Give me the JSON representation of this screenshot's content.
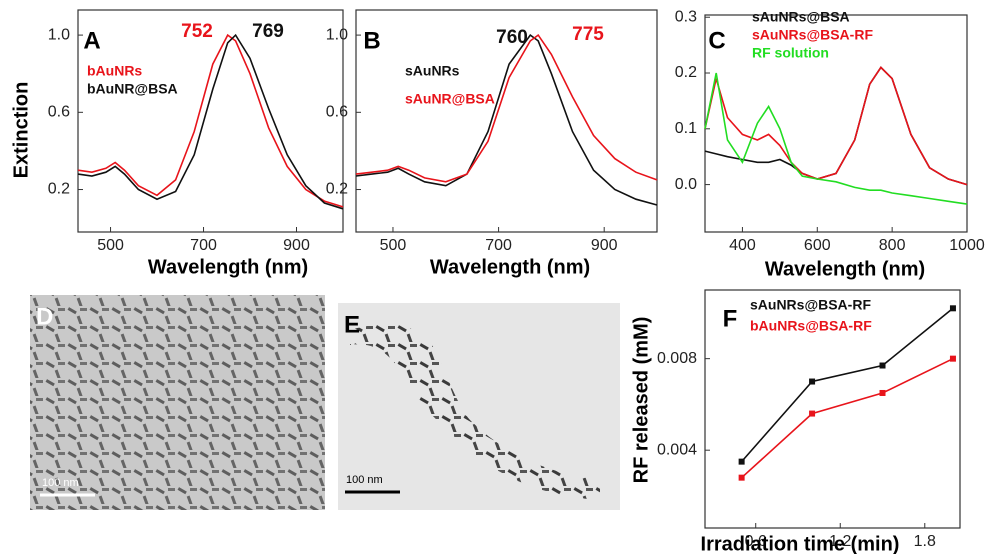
{
  "chart_data": [
    {
      "type": "line",
      "panel_label": "A",
      "y_label": "Extinction",
      "x_label": "Wavelength (nm)",
      "x": [
        430,
        460,
        490,
        510,
        530,
        560,
        600,
        640,
        680,
        720,
        752,
        769,
        800,
        840,
        880,
        920,
        960,
        1000
      ],
      "series": [
        {
          "name": "bAuNRs",
          "color": "#e8141b",
          "values": [
            0.3,
            0.29,
            0.31,
            0.34,
            0.3,
            0.22,
            0.17,
            0.25,
            0.5,
            0.85,
            1.0,
            0.97,
            0.8,
            0.52,
            0.32,
            0.2,
            0.14,
            0.11
          ]
        },
        {
          "name": "bAuNR@BSA",
          "color": "#111111",
          "values": [
            0.28,
            0.27,
            0.29,
            0.32,
            0.28,
            0.2,
            0.15,
            0.19,
            0.38,
            0.72,
            0.96,
            1.0,
            0.88,
            0.62,
            0.38,
            0.22,
            0.13,
            0.1
          ]
        }
      ],
      "annotations": [
        {
          "text": "752",
          "color": "#e8141b"
        },
        {
          "text": "769",
          "color": "#111111"
        }
      ],
      "xlim": [
        430,
        1000
      ],
      "xticks": [
        500,
        700,
        900
      ],
      "ylim": [
        -0.02,
        1.13
      ],
      "yticks": [
        0.2,
        0.6,
        {
          "value": 1,
          "label": "1.0"
        }
      ]
    },
    {
      "type": "line",
      "panel_label": "B",
      "x_label": "Wavelength (nm)",
      "x": [
        430,
        460,
        490,
        510,
        530,
        560,
        600,
        640,
        680,
        720,
        760,
        775,
        800,
        840,
        880,
        920,
        960,
        1000
      ],
      "series": [
        {
          "name": "sAuNRs",
          "color": "#111111",
          "values": [
            0.27,
            0.28,
            0.29,
            0.31,
            0.28,
            0.24,
            0.22,
            0.28,
            0.5,
            0.85,
            1.0,
            0.97,
            0.8,
            0.5,
            0.3,
            0.2,
            0.15,
            0.12
          ]
        },
        {
          "name": "sAuNR@BSA",
          "color": "#e8141b",
          "values": [
            0.28,
            0.29,
            0.3,
            0.32,
            0.3,
            0.26,
            0.24,
            0.28,
            0.45,
            0.78,
            0.97,
            1.0,
            0.9,
            0.68,
            0.48,
            0.36,
            0.29,
            0.25
          ]
        }
      ],
      "annotations": [
        {
          "text": "760",
          "color": "#111111"
        },
        {
          "text": "775",
          "color": "#e8141b"
        }
      ],
      "xlim": [
        430,
        1000
      ],
      "xticks": [
        500,
        700,
        900
      ],
      "ylim": [
        -0.02,
        1.13
      ],
      "yticks": [
        0.2,
        0.6,
        {
          "value": 1,
          "label": "1.0"
        }
      ]
    },
    {
      "type": "line",
      "panel_label": "C",
      "x_label": "Wavelength (nm)",
      "x": [
        300,
        330,
        360,
        400,
        440,
        470,
        500,
        530,
        560,
        600,
        650,
        700,
        740,
        770,
        800,
        850,
        900,
        950,
        1000
      ],
      "series": [
        {
          "name": "sAuNRs@BSA",
          "color": "#111111",
          "values": [
            0.06,
            0.055,
            0.05,
            0.045,
            0.04,
            0.04,
            0.045,
            0.035,
            0.02,
            0.01,
            0.02,
            0.08,
            0.18,
            0.21,
            0.19,
            0.09,
            0.03,
            0.01,
            0.0
          ]
        },
        {
          "name": "sAuNRs@BSA-RF",
          "color": "#e8141b",
          "values": [
            0.1,
            0.19,
            0.12,
            0.09,
            0.08,
            0.09,
            0.07,
            0.04,
            0.02,
            0.01,
            0.02,
            0.08,
            0.18,
            0.21,
            0.19,
            0.09,
            0.03,
            0.01,
            0.0
          ]
        },
        {
          "name": "RF solution",
          "color": "#22dd22",
          "values": [
            0.1,
            0.2,
            0.08,
            0.04,
            0.11,
            0.14,
            0.1,
            0.04,
            0.015,
            0.01,
            0.005,
            -0.005,
            -0.01,
            -0.01,
            -0.015,
            -0.02,
            -0.025,
            -0.03,
            -0.035
          ]
        }
      ],
      "xlim": [
        300,
        1000
      ],
      "xticks": [
        400,
        600,
        800,
        1000
      ],
      "ylim": [
        -0.085,
        0.304
      ],
      "yticks": [
        {
          "value": 0,
          "label": "0.0"
        },
        0.1,
        0.2,
        0.3
      ]
    },
    {
      "type": "line",
      "markers": true,
      "panel_label": "F",
      "y_label": "RF released (mM)",
      "x_label": "Irradiation time (min)",
      "x": [
        0.5,
        1.0,
        1.5,
        2.0
      ],
      "series": [
        {
          "name": "sAuNRs@BSA-RF",
          "color": "#111111",
          "values": [
            0.0035,
            0.007,
            0.0077,
            0.0102
          ]
        },
        {
          "name": "bAuNRs@BSA-RF",
          "color": "#e8141b",
          "values": [
            0.0028,
            0.0056,
            0.0065,
            0.008
          ]
        }
      ],
      "xlim": [
        0.24,
        2.05
      ],
      "xticks": [
        0.6,
        1.2,
        1.8
      ],
      "ylim": [
        0.0006,
        0.011
      ],
      "yticks": [
        0.004,
        0.008
      ]
    }
  ],
  "images": [
    {
      "panel_label": "D",
      "scale_bar": "100 nm"
    },
    {
      "panel_label": "E",
      "scale_bar": "100 nm"
    }
  ]
}
